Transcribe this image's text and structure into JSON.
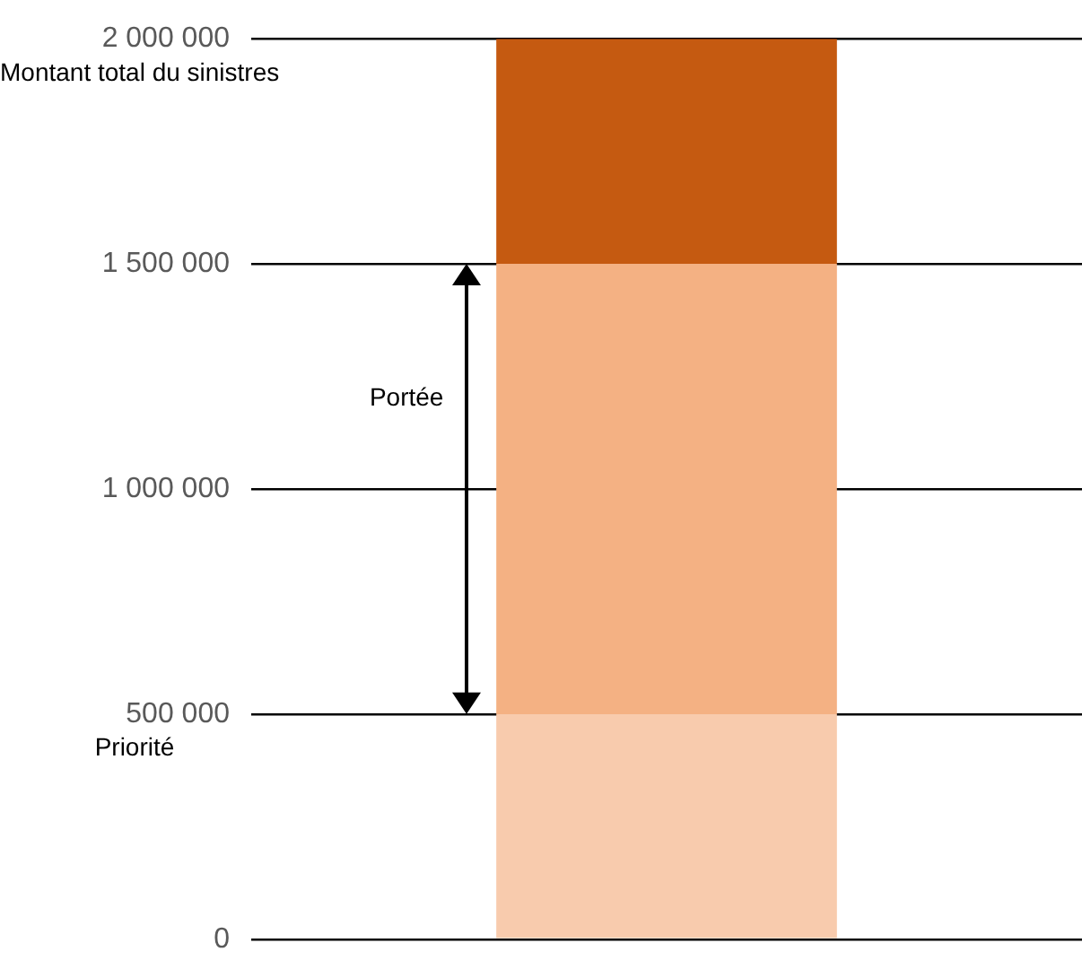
{
  "chart_data": {
    "type": "bar",
    "stacked": true,
    "categories": [
      null
    ],
    "series": [
      {
        "color": "#f8cbad",
        "values": [
          500000
        ]
      },
      {
        "color": "#f4b183",
        "values": [
          1000000
        ]
      },
      {
        "color": "#c55a11",
        "values": [
          500000
        ]
      }
    ],
    "ylim": [
      0,
      2000000
    ],
    "yticks": [
      {
        "value": 0,
        "label": "0"
      },
      {
        "value": 500000,
        "label": "500 000"
      },
      {
        "value": 1000000,
        "label": "1 000 000"
      },
      {
        "value": 1500000,
        "label": "1 500 000"
      },
      {
        "value": 2000000,
        "label": "2 000 000"
      }
    ],
    "grid": "y",
    "annotations": [
      "Montant total du sinistres",
      "Priorité",
      "Portée"
    ]
  }
}
